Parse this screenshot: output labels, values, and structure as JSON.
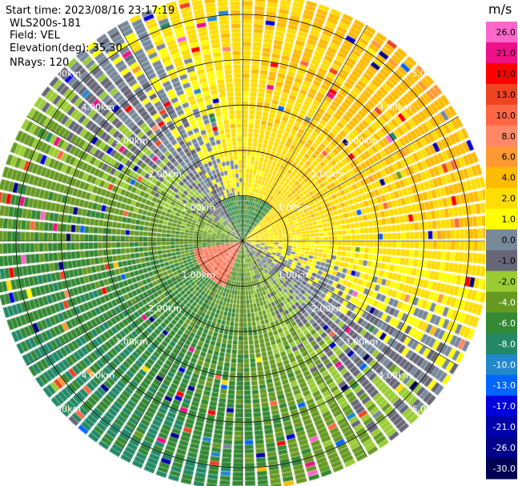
{
  "header": {
    "start_time": "Start time: 2023/08/16 23:17:19",
    "instrument": "WLS200s-181",
    "field": "Field: VEL",
    "elevation": "Elevation(deg): 35.30",
    "nrays": "NRays: 120"
  },
  "colorbar": {
    "unit": "m/s",
    "ticks": [
      "26.0",
      "21.0",
      "17.0",
      "13.0",
      "10.0",
      "8.0",
      "6.0",
      "4.0",
      "2.0",
      "1.0",
      "0.0",
      "-1.0",
      "-2.0",
      "-4.0",
      "-6.0",
      "-8.0",
      "-10.0",
      "-13.0",
      "-17.0",
      "-21.0",
      "-26.0",
      "-30.0"
    ],
    "colors": [
      "#ff66cc",
      "#ee1188",
      "#ff0000",
      "#ee4422",
      "#ff6644",
      "#ff8866",
      "#ff9933",
      "#ffbb00",
      "#ffdd00",
      "#ffff00",
      "#778899",
      "#666677",
      "#99cc33",
      "#669922",
      "#338833",
      "#228866",
      "#2288cc",
      "#0066ff",
      "#0000dd",
      "#0000aa",
      "#000088",
      "#000055"
    ]
  },
  "chart_data": {
    "type": "heatmap",
    "subtype": "polar-ppi",
    "field": "VEL",
    "unit": "m/s",
    "nrays": 120,
    "elevation_deg": 35.3,
    "range_rings_km": [
      1,
      2,
      3,
      4,
      5
    ],
    "range_labels": [
      "1.00km",
      "2.00km",
      "3.00km",
      "4.00km",
      "5.00km"
    ],
    "max_range_km": 5.5,
    "pattern_summary": "Positive (yellow/orange) velocities toward the north-east and east, negative (green) velocities toward the west, south and south-west; near-zero (grey) band along the north-west/south-east axis; small orange core just south-west of the centre."
  }
}
